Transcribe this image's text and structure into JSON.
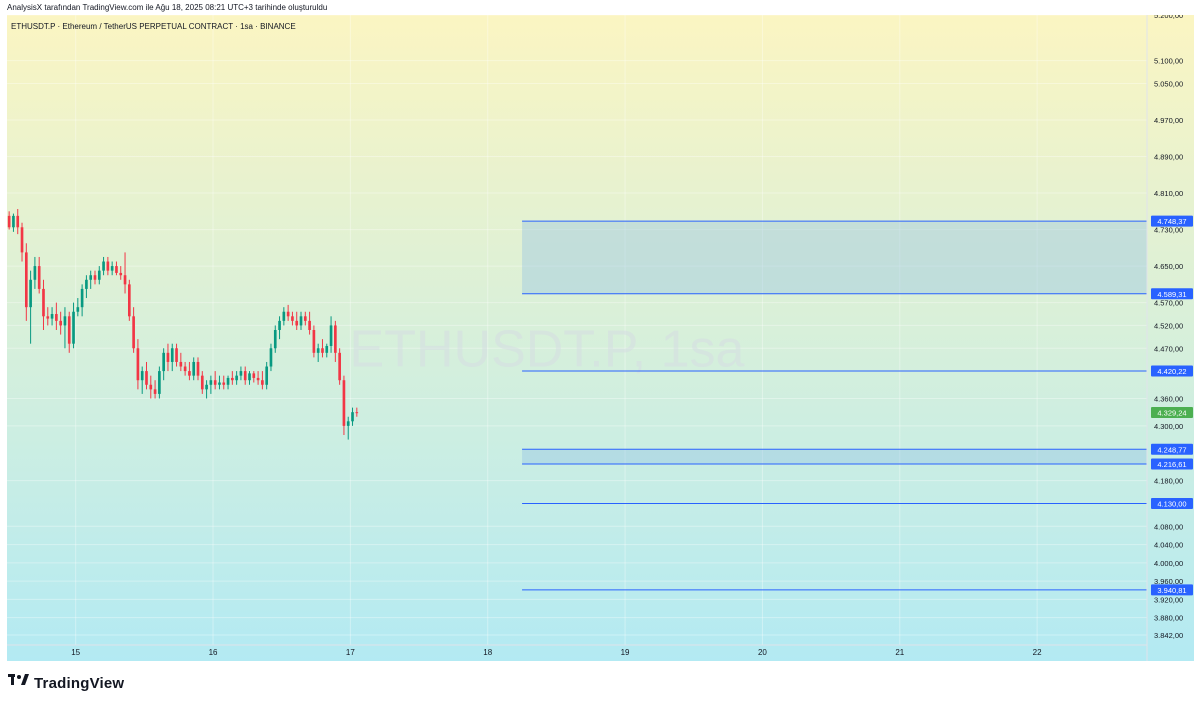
{
  "credit": "AnalysisX tarafından TradingView.com ile Ağu 18, 2025 08:21 UTC+3 tarihinde oluşturuldu",
  "brand": {
    "name": "TradingView",
    "logo_icon": "tradingview-logo-icon"
  },
  "colors": {
    "bg_top": "#fbf5c2",
    "bg_bottom": "#b3eaf3",
    "up": "#089981",
    "down": "#f23645",
    "level_line": "#2962ff",
    "zone_fill": "#90bfe6",
    "current_price": "#4caf50"
  },
  "chart_data": {
    "type": "candlestick",
    "symbol_line": "ETHUSDT.P · Ethereum / TetherUS PERPETUAL CONTRACT · 1sa · BINANCE",
    "watermark": "ETHUSDT.P, 1sa",
    "ylim": [
      3820,
      5200
    ],
    "xlim": [
      14.5,
      22.8
    ],
    "x_ticks": [
      {
        "v": 15,
        "label": "15"
      },
      {
        "v": 16,
        "label": "16"
      },
      {
        "v": 17,
        "label": "17"
      },
      {
        "v": 18,
        "label": "18"
      },
      {
        "v": 19,
        "label": "19"
      },
      {
        "v": 20,
        "label": "20"
      },
      {
        "v": 21,
        "label": "21"
      },
      {
        "v": 22,
        "label": "22"
      }
    ],
    "y_ticks": [
      {
        "v": 5200,
        "label": "5.200,00"
      },
      {
        "v": 5100,
        "label": "5.100,00"
      },
      {
        "v": 5050,
        "label": "5.050,00"
      },
      {
        "v": 4970,
        "label": "4.970,00"
      },
      {
        "v": 4890,
        "label": "4.890,00"
      },
      {
        "v": 4810,
        "label": "4.810,00"
      },
      {
        "v": 4730,
        "label": "4.730,00"
      },
      {
        "v": 4650,
        "label": "4.650,00"
      },
      {
        "v": 4570,
        "label": "4.570,00"
      },
      {
        "v": 4520,
        "label": "4.520,00"
      },
      {
        "v": 4470,
        "label": "4.470,00"
      },
      {
        "v": 4360,
        "label": "4.360,00"
      },
      {
        "v": 4300,
        "label": "4.300,00"
      },
      {
        "v": 4180,
        "label": "4.180,00"
      },
      {
        "v": 4080,
        "label": "4.080,00"
      },
      {
        "v": 4040,
        "label": "4.040,00"
      },
      {
        "v": 4000,
        "label": "4.000,00"
      },
      {
        "v": 3960,
        "label": "3.960,00"
      },
      {
        "v": 3920,
        "label": "3.920,00"
      },
      {
        "v": 3880,
        "label": "3.880,00"
      },
      {
        "v": 3842,
        "label": "3.842,00"
      }
    ],
    "levels": [
      {
        "price": 4748.37,
        "label": "4.748,37"
      },
      {
        "price": 4589.31,
        "label": "4.589,31"
      },
      {
        "price": 4420.22,
        "label": "4.420,22"
      },
      {
        "price": 4248.77,
        "label": "4.248,77"
      },
      {
        "price": 4216.61,
        "label": "4.216,61"
      },
      {
        "price": 4130.0,
        "label": "4.130,00"
      },
      {
        "price": 3940.81,
        "label": "3.940,81"
      }
    ],
    "zones": [
      {
        "from": 4589.31,
        "to": 4748.37,
        "x_start": 18.25
      },
      {
        "from": 4216.61,
        "to": 4248.77,
        "x_start": 18.25
      }
    ],
    "levels_x_start": 18.25,
    "current_price": {
      "value": 4329.24,
      "label": "4.329,24"
    },
    "candles_start_x": 14.5,
    "candles_step": 0.03125,
    "candles": [
      [
        4760,
        4770,
        4730,
        4735
      ],
      [
        4735,
        4765,
        4725,
        4760
      ],
      [
        4760,
        4775,
        4720,
        4735
      ],
      [
        4735,
        4745,
        4660,
        4680
      ],
      [
        4680,
        4700,
        4530,
        4560
      ],
      [
        4560,
        4640,
        4480,
        4620
      ],
      [
        4620,
        4670,
        4600,
        4650
      ],
      [
        4650,
        4670,
        4590,
        4600
      ],
      [
        4600,
        4620,
        4510,
        4540
      ],
      [
        4540,
        4560,
        4520,
        4535
      ],
      [
        4535,
        4560,
        4520,
        4545
      ],
      [
        4545,
        4570,
        4510,
        4530
      ],
      [
        4530,
        4550,
        4500,
        4520
      ],
      [
        4520,
        4560,
        4470,
        4540
      ],
      [
        4540,
        4550,
        4460,
        4480
      ],
      [
        4480,
        4570,
        4470,
        4550
      ],
      [
        4550,
        4580,
        4540,
        4560
      ],
      [
        4560,
        4610,
        4540,
        4600
      ],
      [
        4600,
        4630,
        4580,
        4620
      ],
      [
        4620,
        4640,
        4600,
        4630
      ],
      [
        4630,
        4640,
        4610,
        4620
      ],
      [
        4620,
        4650,
        4610,
        4640
      ],
      [
        4640,
        4670,
        4630,
        4660
      ],
      [
        4660,
        4670,
        4630,
        4640
      ],
      [
        4640,
        4660,
        4630,
        4650
      ],
      [
        4650,
        4660,
        4630,
        4635
      ],
      [
        4635,
        4650,
        4620,
        4630
      ],
      [
        4630,
        4680,
        4590,
        4610
      ],
      [
        4610,
        4620,
        4530,
        4540
      ],
      [
        4540,
        4560,
        4460,
        4470
      ],
      [
        4470,
        4490,
        4380,
        4400
      ],
      [
        4400,
        4430,
        4370,
        4420
      ],
      [
        4420,
        4440,
        4380,
        4390
      ],
      [
        4390,
        4410,
        4360,
        4380
      ],
      [
        4380,
        4400,
        4360,
        4370
      ],
      [
        4370,
        4430,
        4360,
        4420
      ],
      [
        4420,
        4470,
        4400,
        4460
      ],
      [
        4460,
        4480,
        4420,
        4440
      ],
      [
        4440,
        4480,
        4420,
        4470
      ],
      [
        4470,
        4480,
        4430,
        4440
      ],
      [
        4440,
        4460,
        4420,
        4430
      ],
      [
        4430,
        4440,
        4410,
        4420
      ],
      [
        4420,
        4440,
        4400,
        4410
      ],
      [
        4410,
        4450,
        4400,
        4440
      ],
      [
        4440,
        4450,
        4400,
        4410
      ],
      [
        4410,
        4420,
        4370,
        4380
      ],
      [
        4380,
        4400,
        4360,
        4390
      ],
      [
        4390,
        4410,
        4370,
        4400
      ],
      [
        4400,
        4420,
        4380,
        4390
      ],
      [
        4390,
        4410,
        4380,
        4395
      ],
      [
        4395,
        4410,
        4380,
        4390
      ],
      [
        4390,
        4410,
        4380,
        4405
      ],
      [
        4405,
        4420,
        4390,
        4400
      ],
      [
        4400,
        4420,
        4390,
        4410
      ],
      [
        4410,
        4430,
        4400,
        4420
      ],
      [
        4420,
        4430,
        4390,
        4400
      ],
      [
        4400,
        4420,
        4390,
        4415
      ],
      [
        4415,
        4420,
        4395,
        4405
      ],
      [
        4405,
        4420,
        4390,
        4400
      ],
      [
        4400,
        4420,
        4380,
        4390
      ],
      [
        4390,
        4440,
        4380,
        4430
      ],
      [
        4430,
        4480,
        4420,
        4470
      ],
      [
        4470,
        4520,
        4460,
        4510
      ],
      [
        4510,
        4540,
        4490,
        4530
      ],
      [
        4530,
        4560,
        4520,
        4550
      ],
      [
        4550,
        4565,
        4530,
        4540
      ],
      [
        4540,
        4550,
        4520,
        4530
      ],
      [
        4530,
        4550,
        4510,
        4520
      ],
      [
        4520,
        4550,
        4510,
        4540
      ],
      [
        4540,
        4550,
        4520,
        4530
      ],
      [
        4530,
        4550,
        4500,
        4510
      ],
      [
        4510,
        4520,
        4450,
        4460
      ],
      [
        4460,
        4480,
        4440,
        4470
      ],
      [
        4470,
        4490,
        4450,
        4460
      ],
      [
        4460,
        4480,
        4450,
        4475
      ],
      [
        4475,
        4540,
        4460,
        4520
      ],
      [
        4520,
        4530,
        4440,
        4460
      ],
      [
        4460,
        4470,
        4390,
        4400
      ],
      [
        4400,
        4410,
        4280,
        4300
      ],
      [
        4300,
        4320,
        4270,
        4310
      ],
      [
        4310,
        4340,
        4300,
        4330
      ],
      [
        4330,
        4340,
        4320,
        4329.24
      ]
    ]
  }
}
